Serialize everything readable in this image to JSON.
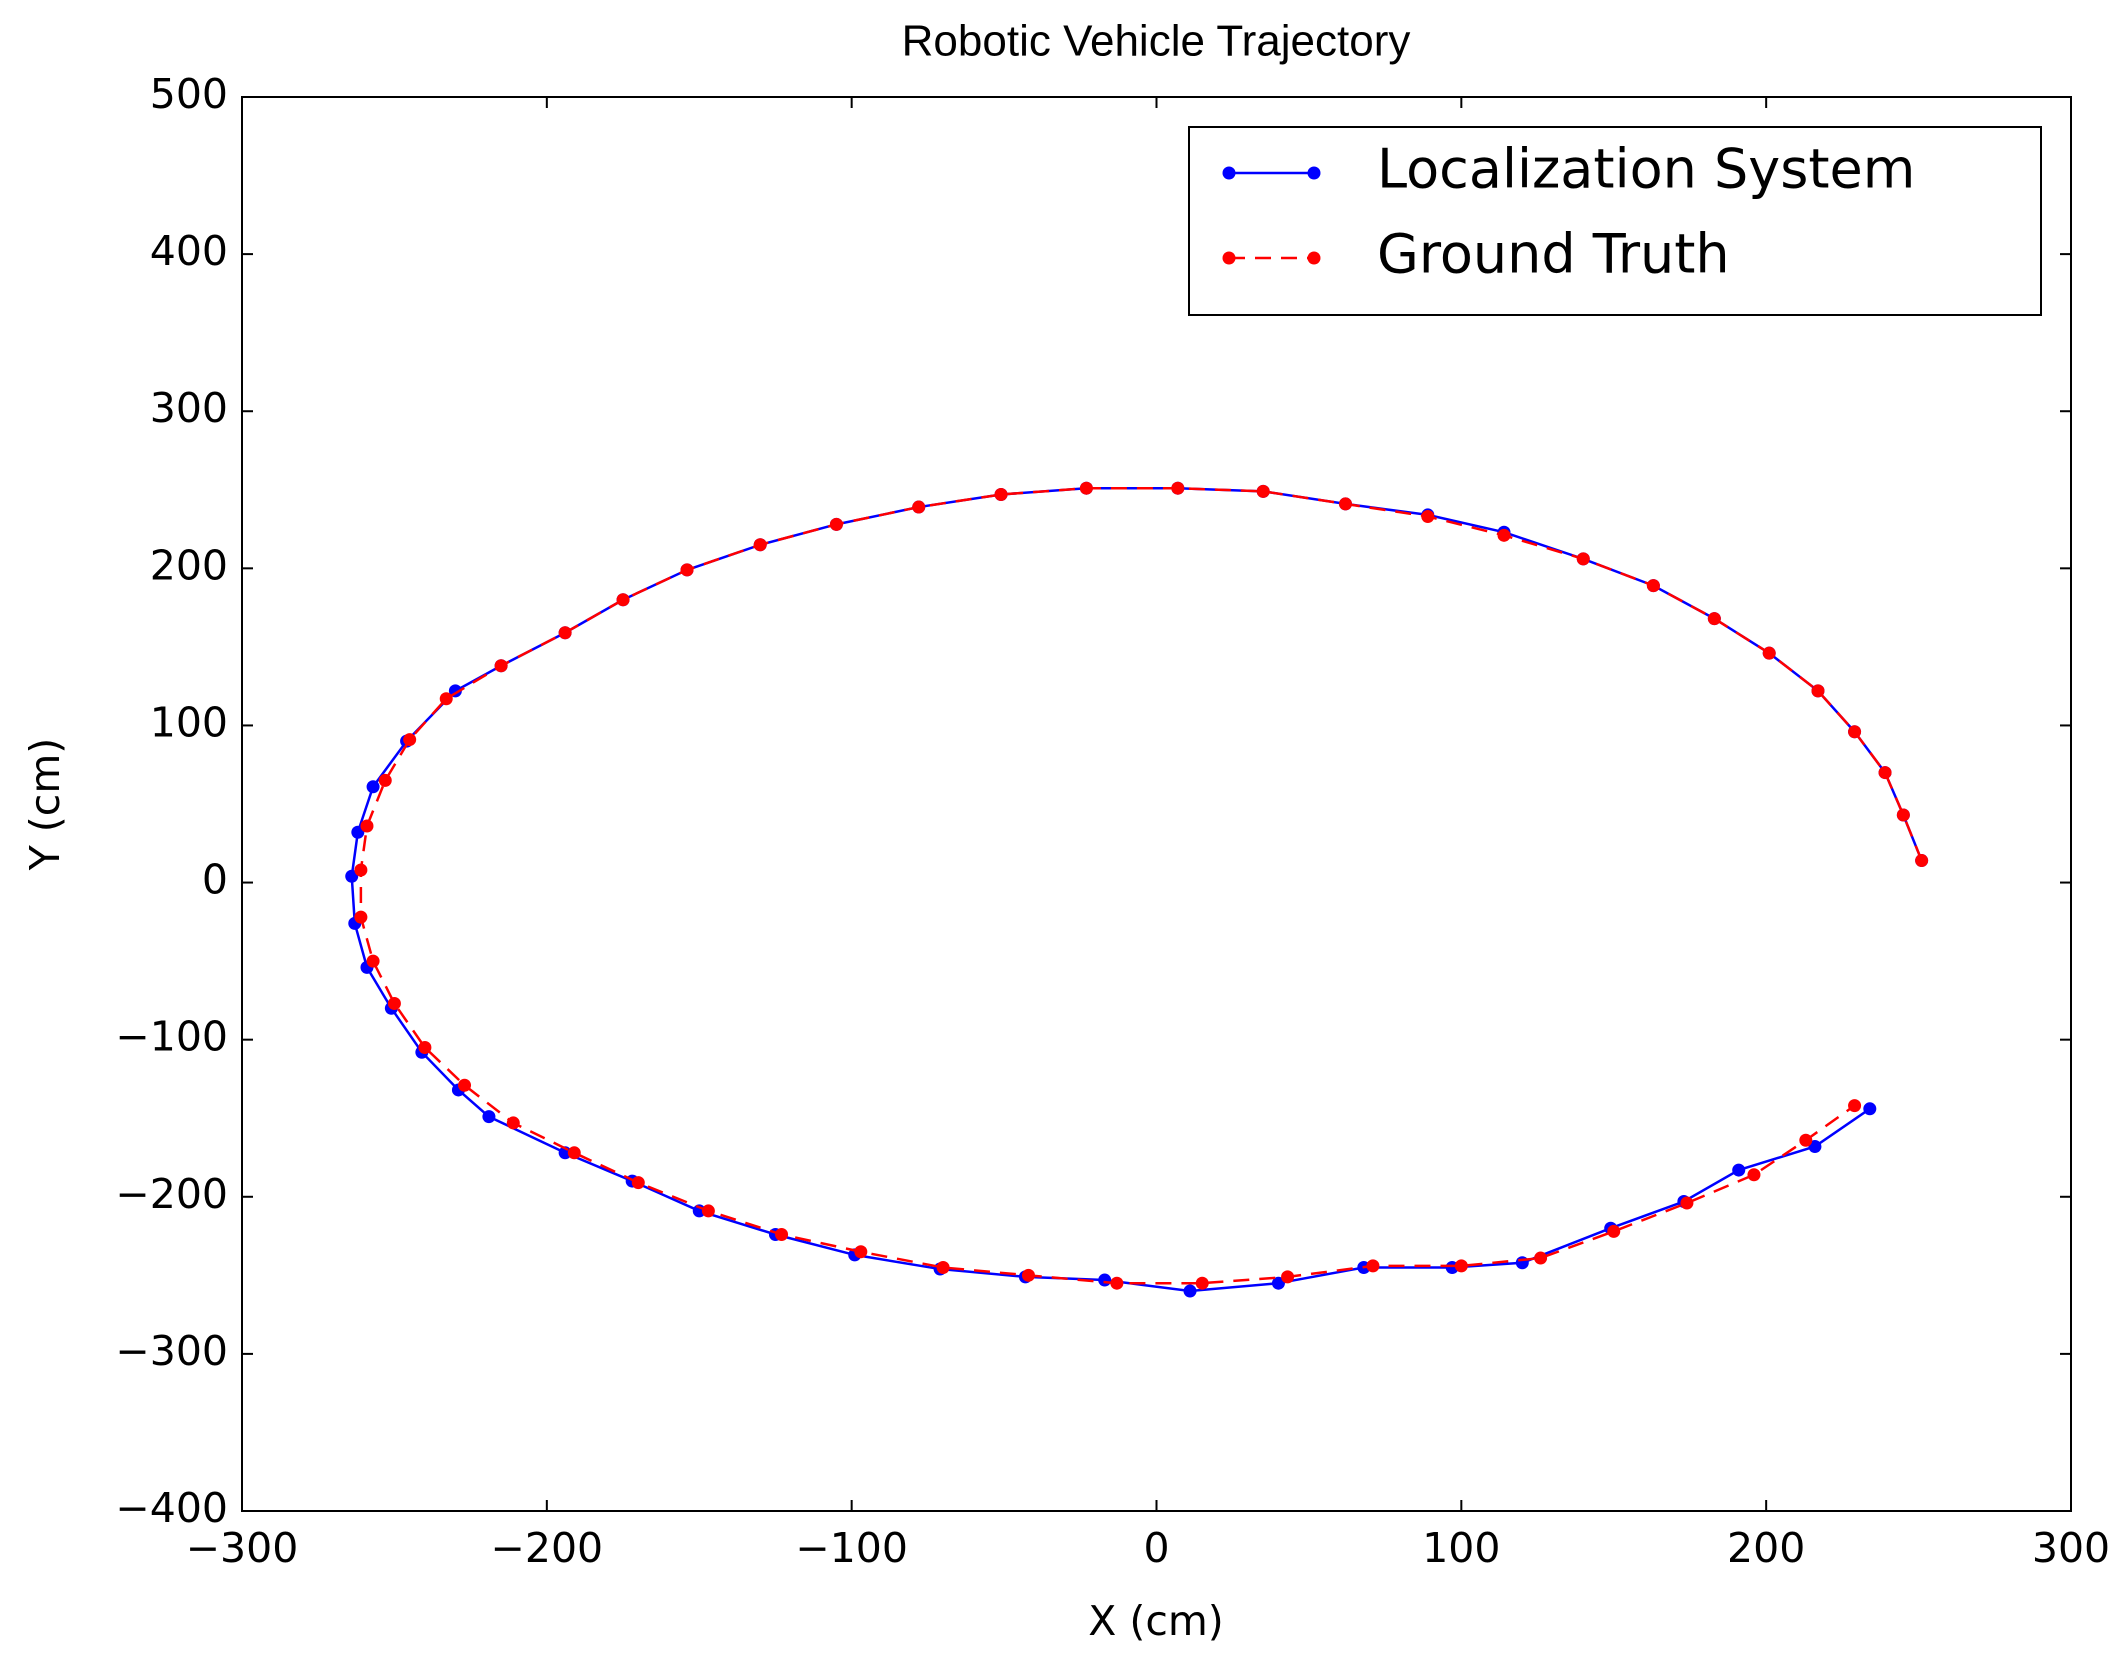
{
  "chart_data": {
    "type": "line",
    "title": "Robotic Vehicle Trajectory",
    "x_label": "X (cm)",
    "y_label": "Y (cm)",
    "xlim": [
      -300,
      300
    ],
    "ylim": [
      -400,
      500
    ],
    "xticks": [
      {
        "value": -300,
        "label": "−300"
      },
      {
        "value": -200,
        "label": "−200"
      },
      {
        "value": -100,
        "label": "−100"
      },
      0,
      100,
      200,
      300
    ],
    "yticks": [
      {
        "value": -400,
        "label": "−400"
      },
      {
        "value": -300,
        "label": "−300"
      },
      {
        "value": -200,
        "label": "−200"
      },
      {
        "value": -100,
        "label": "−100"
      },
      0,
      100,
      200,
      300,
      400,
      500
    ],
    "grid": false,
    "legend": "upper right",
    "series": [
      {
        "name": "Localization System",
        "color": "#0000ff",
        "dash": false,
        "x": [
          251,
          245,
          239,
          229,
          217,
          201,
          183,
          163,
          140,
          114,
          89,
          62,
          35,
          7,
          -23,
          -51,
          -78,
          -105,
          -130,
          -154,
          -175,
          -194,
          -215,
          -230,
          -246,
          -257,
          -262,
          -264,
          -263,
          -259,
          -251,
          -241,
          -229,
          -219,
          -194,
          -172,
          -150,
          -125,
          -99,
          -71,
          -43,
          -17,
          11,
          40,
          68,
          97,
          120,
          149,
          173,
          191,
          216,
          234
        ],
        "values": [
          14,
          43,
          70,
          96,
          122,
          146,
          168,
          189,
          206,
          223,
          234,
          241,
          249,
          251,
          251,
          247,
          239,
          228,
          215,
          199,
          180,
          159,
          138,
          122,
          90,
          61,
          32,
          4,
          -26,
          -54,
          -80,
          -108,
          -132,
          -149,
          -172,
          -190,
          -209,
          -224,
          -237,
          -246,
          -251,
          -253,
          -260,
          -255,
          -245,
          -245,
          -242,
          -220,
          -203,
          -183,
          -168,
          -144
        ]
      },
      {
        "name": "Ground Truth",
        "color": "#ff0000",
        "dash": true,
        "x": [
          251,
          245,
          239,
          229,
          217,
          201,
          183,
          163,
          140,
          114,
          89,
          62,
          35,
          7,
          -23,
          -51,
          -78,
          -105,
          -130,
          -154,
          -175,
          -194,
          -215,
          -233,
          -245,
          -253,
          -259,
          -261,
          -261,
          -257,
          -250,
          -240,
          -227,
          -211,
          -191,
          -170,
          -147,
          -123,
          -97,
          -70,
          -42,
          -13,
          15,
          43,
          71,
          100,
          126,
          150,
          174,
          196,
          213,
          229
        ],
        "values": [
          14,
          43,
          70,
          96,
          122,
          146,
          168,
          189,
          206,
          221,
          233,
          241,
          249,
          251,
          251,
          247,
          239,
          228,
          215,
          199,
          180,
          159,
          138,
          117,
          91,
          65,
          36,
          8,
          -22,
          -50,
          -77,
          -105,
          -129,
          -153,
          -172,
          -191,
          -209,
          -224,
          -235,
          -245,
          -250,
          -255,
          -255,
          -251,
          -244,
          -244,
          -239,
          -222,
          -204,
          -186,
          -164,
          -142
        ]
      }
    ]
  }
}
